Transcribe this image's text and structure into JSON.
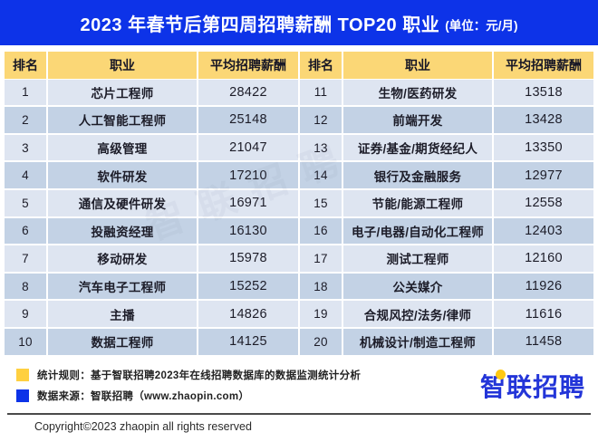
{
  "title": {
    "main": "2023 年春节后第四周招聘薪酬 TOP20 职业",
    "unit": "(单位：元/月)"
  },
  "columns": [
    "排名",
    "职业",
    "平均招聘薪酬"
  ],
  "left_rows": [
    {
      "rank": "1",
      "job": "芯片工程师",
      "salary": "28422"
    },
    {
      "rank": "2",
      "job": "人工智能工程师",
      "salary": "25148"
    },
    {
      "rank": "3",
      "job": "高级管理",
      "salary": "21047"
    },
    {
      "rank": "4",
      "job": "软件研发",
      "salary": "17210"
    },
    {
      "rank": "5",
      "job": "通信及硬件研发",
      "salary": "16971"
    },
    {
      "rank": "6",
      "job": "投融资经理",
      "salary": "16130"
    },
    {
      "rank": "7",
      "job": "移动研发",
      "salary": "15978"
    },
    {
      "rank": "8",
      "job": "汽车电子工程师",
      "salary": "15252"
    },
    {
      "rank": "9",
      "job": "主播",
      "salary": "14826"
    },
    {
      "rank": "10",
      "job": "数据工程师",
      "salary": "14125"
    }
  ],
  "right_rows": [
    {
      "rank": "11",
      "job": "生物/医药研发",
      "salary": "13518"
    },
    {
      "rank": "12",
      "job": "前端开发",
      "salary": "13428"
    },
    {
      "rank": "13",
      "job": "证券/基金/期货经纪人",
      "salary": "13350"
    },
    {
      "rank": "14",
      "job": "银行及金融服务",
      "salary": "12977"
    },
    {
      "rank": "15",
      "job": "节能/能源工程师",
      "salary": "12558"
    },
    {
      "rank": "16",
      "job": "电子/电器/自动化工程师",
      "salary": "12403"
    },
    {
      "rank": "17",
      "job": "测试工程师",
      "salary": "12160"
    },
    {
      "rank": "18",
      "job": "公关媒介",
      "salary": "11926"
    },
    {
      "rank": "19",
      "job": "合规风控/法务/律师",
      "salary": "11616"
    },
    {
      "rank": "20",
      "job": "机械设计/制造工程师",
      "salary": "11458"
    }
  ],
  "watermark": "智联招聘",
  "footer": {
    "note1": "统计规则：基于智联招聘2023年在线招聘数据库的数据监测统计分析",
    "note2": "数据来源：智联招聘（www.zhaopin.com）",
    "logo": "智联招聘",
    "copyright": "Copyright©2023 zhaopin all rights reserved"
  },
  "colors": {
    "title_bg": "#0d33e8",
    "header_bg": "#fbd776",
    "row_light": "#dee5f1",
    "row_dark": "#c3d2e5",
    "legend_yellow": "#ffd040",
    "legend_blue": "#0d33e8",
    "logo_blue": "#2335d8"
  },
  "chart_data": {
    "type": "table",
    "title": "2023 年春节后第四周招聘薪酬 TOP20 职业",
    "unit": "元/月",
    "columns": [
      "排名",
      "职业",
      "平均招聘薪酬"
    ],
    "categories": [
      "芯片工程师",
      "人工智能工程师",
      "高级管理",
      "软件研发",
      "通信及硬件研发",
      "投融资经理",
      "移动研发",
      "汽车电子工程师",
      "主播",
      "数据工程师",
      "生物/医药研发",
      "前端开发",
      "证券/基金/期货经纪人",
      "银行及金融服务",
      "节能/能源工程师",
      "电子/电器/自动化工程师",
      "测试工程师",
      "公关媒介",
      "合规风控/法务/律师",
      "机械设计/制造工程师"
    ],
    "values": [
      28422,
      25148,
      21047,
      17210,
      16971,
      16130,
      15978,
      15252,
      14826,
      14125,
      13518,
      13428,
      13350,
      12977,
      12558,
      12403,
      12160,
      11926,
      11616,
      11458
    ]
  }
}
